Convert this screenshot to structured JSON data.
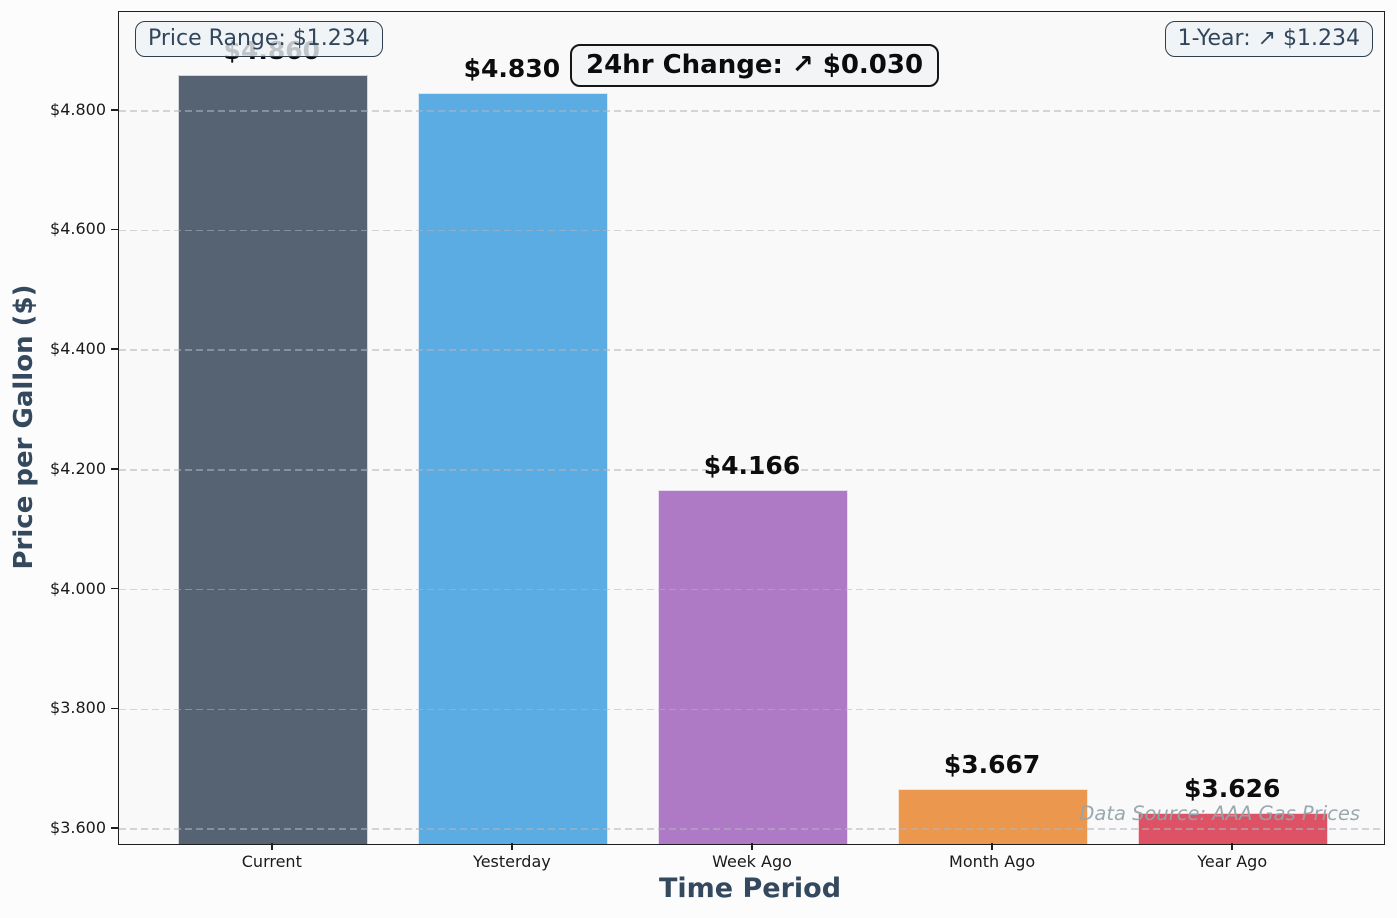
{
  "chart_data": {
    "type": "bar",
    "title": "",
    "xlabel": "Time Period",
    "ylabel": "Price per Gallon ($)",
    "categories": [
      "Current",
      "Yesterday",
      "Week Ago",
      "Month Ago",
      "Year Ago"
    ],
    "values": [
      4.86,
      4.83,
      4.166,
      3.667,
      3.626
    ],
    "value_labels": [
      "$4.860",
      "$4.830",
      "$4.166",
      "$3.667",
      "$3.626"
    ],
    "bar_colors": [
      "#556372",
      "#5BACE2",
      "#AF7AC5",
      "#EB984E",
      "#DE5266"
    ],
    "ylim": [
      3.575,
      4.965
    ],
    "yticks": [
      3.6,
      3.8,
      4.0,
      4.2,
      4.4,
      4.6,
      4.8
    ],
    "ytick_labels": [
      "$3.600",
      "$3.800",
      "$4.000",
      "$4.200",
      "$4.400",
      "$4.600",
      "$4.800"
    ],
    "grid": "horizontal-dashed",
    "legend": "none"
  },
  "annotations": {
    "price_range": "Price Range: $1.234",
    "day_change": "24hr Change: ↗ $0.030",
    "year_change": "1-Year: ↗ $1.234",
    "data_source": "Data Source: AAA Gas Prices"
  },
  "colors": {
    "figure_background": "#fcfcfc",
    "plot_background": "#f9f9f9",
    "axis_title": "#34495e",
    "annotation_text": "#31465c",
    "spine": "#1f1f1f"
  }
}
